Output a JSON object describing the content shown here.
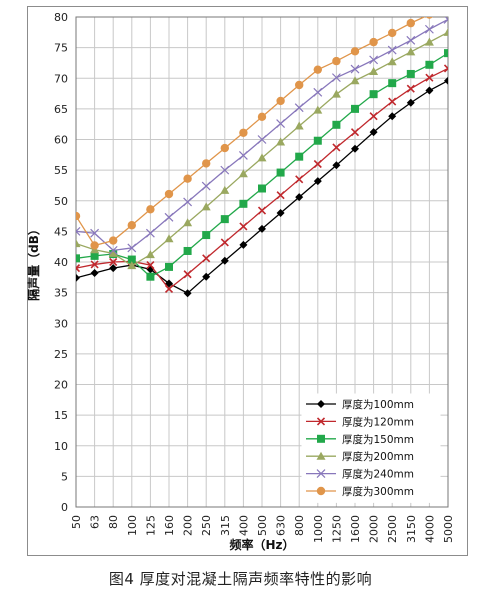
{
  "caption": "图4  厚度对混凝土隔声频率特性的影响",
  "chart_data": {
    "type": "line",
    "xlabel": "频率（Hz）",
    "ylabel": "隔声量（dB）",
    "ylim": [
      0,
      80
    ],
    "yticks": [
      0,
      5,
      10,
      15,
      20,
      25,
      30,
      35,
      40,
      45,
      50,
      55,
      60,
      65,
      70,
      75,
      80
    ],
    "categories": [
      "50",
      "63",
      "80",
      "100",
      "125",
      "160",
      "200",
      "250",
      "315",
      "400",
      "500",
      "630",
      "800",
      "1000",
      "1250",
      "1600",
      "2000",
      "2500",
      "3150",
      "4000",
      "5000"
    ],
    "grid": "horizontal and vertical",
    "legend_position": "bottom-right",
    "series": [
      {
        "name": "厚度为100mm",
        "color": "#000000",
        "marker": "diamond",
        "values": [
          37.4,
          38.2,
          39.0,
          39.5,
          38.8,
          36.5,
          34.9,
          37.6,
          40.2,
          42.8,
          45.4,
          48.0,
          50.6,
          53.2,
          55.8,
          58.5,
          61.2,
          63.8,
          66.0,
          68.0,
          69.6
        ]
      },
      {
        "name": "厚度为120mm",
        "color": "#c0282d",
        "marker": "x",
        "values": [
          39.0,
          39.6,
          40.0,
          40.1,
          39.5,
          35.6,
          38.0,
          40.6,
          43.2,
          45.8,
          48.4,
          50.9,
          53.5,
          56.0,
          58.7,
          61.2,
          63.8,
          66.2,
          68.3,
          70.1,
          71.6
        ]
      },
      {
        "name": "厚度为150mm",
        "color": "#22a84a",
        "marker": "square",
        "values": [
          40.6,
          41.0,
          41.3,
          40.4,
          37.6,
          39.2,
          41.8,
          44.4,
          47.0,
          49.5,
          52.0,
          54.6,
          57.2,
          59.8,
          62.4,
          65.0,
          67.4,
          69.2,
          70.7,
          72.2,
          74.1
        ]
      },
      {
        "name": "厚度为200mm",
        "color": "#9aa860",
        "marker": "triangle",
        "values": [
          43.0,
          42.0,
          41.4,
          39.4,
          41.2,
          43.8,
          46.4,
          49.0,
          51.7,
          54.4,
          57.0,
          59.6,
          62.2,
          64.8,
          67.4,
          69.6,
          71.1,
          72.7,
          74.3,
          75.9,
          77.5
        ]
      },
      {
        "name": "厚度为240mm",
        "color": "#8877bb",
        "marker": "xcross",
        "values": [
          45.0,
          44.7,
          41.9,
          42.3,
          44.7,
          47.3,
          49.8,
          52.4,
          55.0,
          57.4,
          60.0,
          62.6,
          65.2,
          67.7,
          70.1,
          71.5,
          73.0,
          74.6,
          76.2,
          78.0,
          79.6
        ]
      },
      {
        "name": "厚度为300mm",
        "color": "#e0954a",
        "marker": "circle",
        "values": [
          47.5,
          42.7,
          43.5,
          46.0,
          48.6,
          51.1,
          53.6,
          56.1,
          58.6,
          61.1,
          63.7,
          66.3,
          68.9,
          71.4,
          72.8,
          74.4,
          75.9,
          77.4,
          79.0,
          80.4,
          81.6
        ]
      }
    ]
  }
}
